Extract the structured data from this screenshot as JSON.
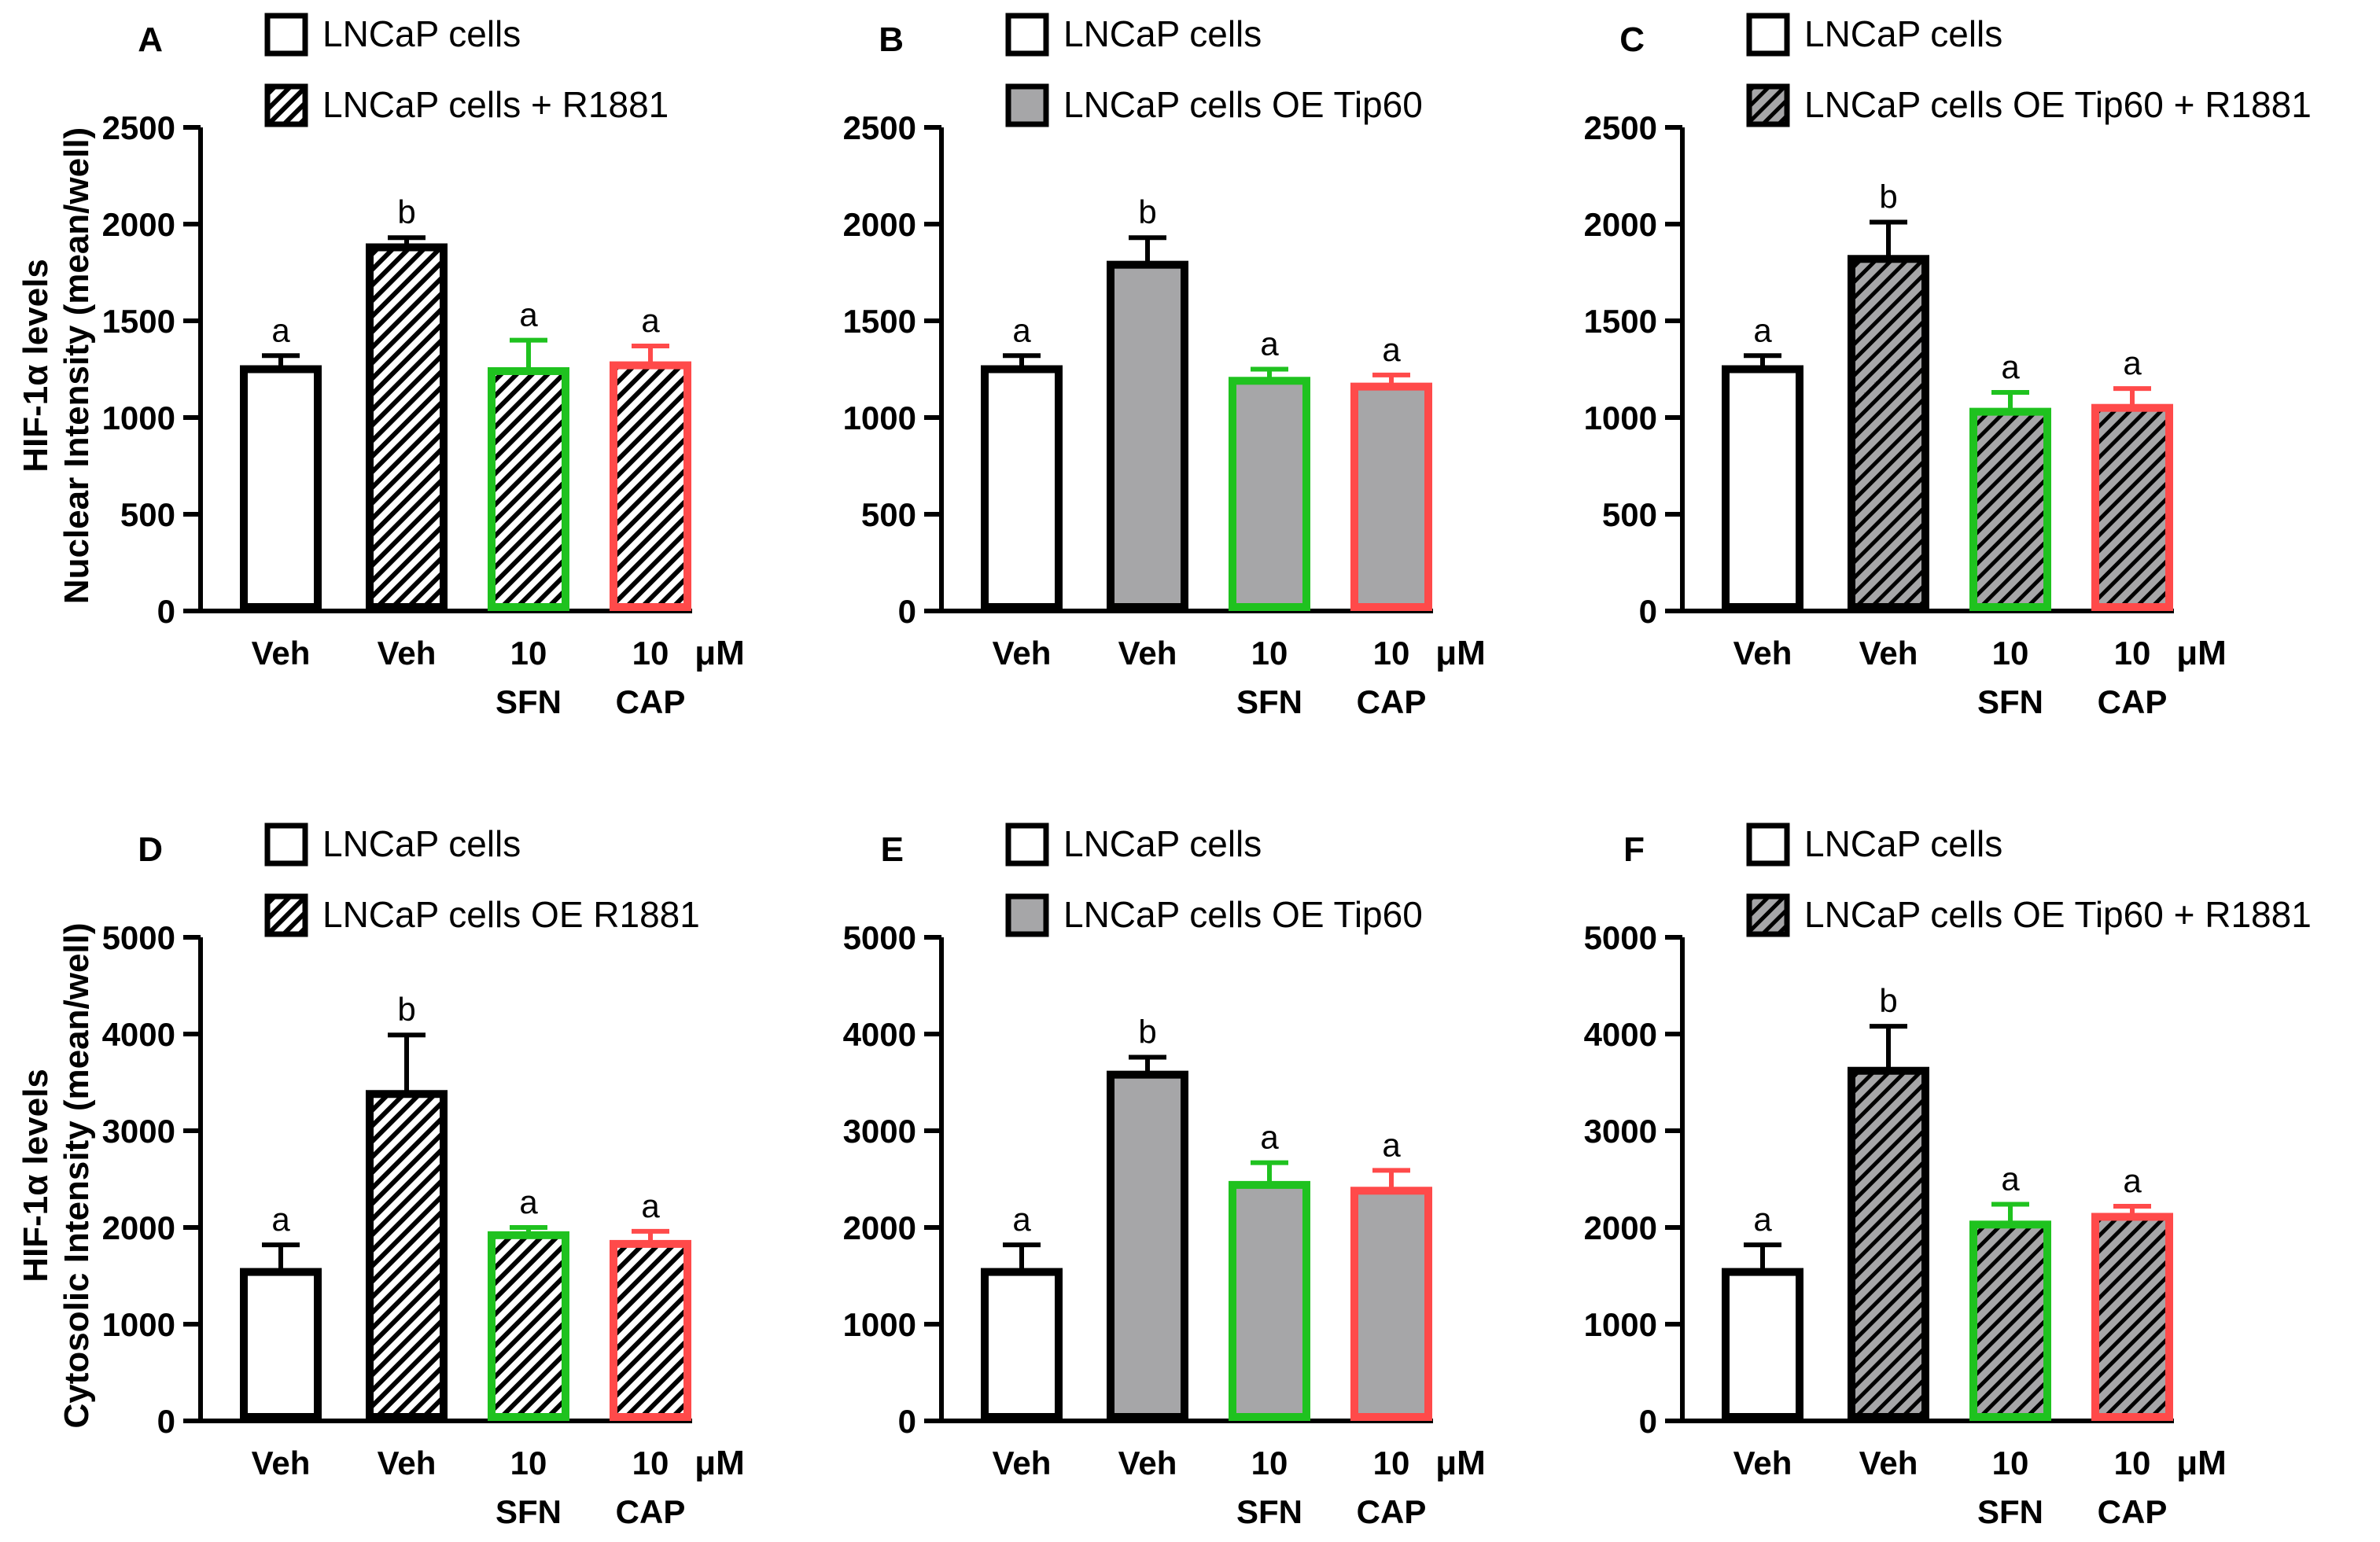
{
  "y_axis_titles": {
    "row1": [
      "HIF-1α levels",
      "Nuclear Intensity (mean/well)"
    ],
    "row2": [
      "HIF-1α levels",
      "Cytosolic Intensity (mean/well)"
    ]
  },
  "colors": {
    "black": "#000000",
    "gray_fill": "#a6a6a8",
    "green": "#1fc21f",
    "red": "#ff4a4a",
    "white": "#ffffff"
  },
  "chart_data": [
    {
      "type": "bar",
      "panel": "A",
      "legend": [
        {
          "label": "LNCaP cells",
          "fill": "white"
        },
        {
          "label": "LNCaP cells + R1881",
          "fill": "hatch"
        }
      ],
      "categories": [
        [
          "Veh"
        ],
        [
          "Veh"
        ],
        [
          "10",
          "SFN"
        ],
        [
          "10",
          "CAP"
        ]
      ],
      "unit": "μM",
      "values": [
        1250,
        1880,
        1240,
        1270
      ],
      "errors": [
        70,
        50,
        160,
        100
      ],
      "letters": [
        "a",
        "b",
        "a",
        "a"
      ],
      "fills": [
        "white",
        "hatch",
        "hatch",
        "hatch"
      ],
      "strokes": [
        "black",
        "black",
        "green",
        "red"
      ],
      "ylim": [
        0,
        2500
      ],
      "yticks": [
        "0",
        "500",
        "1000",
        "1500",
        "2000",
        "2500"
      ]
    },
    {
      "type": "bar",
      "panel": "B",
      "legend": [
        {
          "label": "LNCaP cells",
          "fill": "white"
        },
        {
          "label": "LNCaP cells OE Tip60",
          "fill": "gray"
        }
      ],
      "categories": [
        [
          "Veh"
        ],
        [
          "Veh"
        ],
        [
          "10",
          "SFN"
        ],
        [
          "10",
          "CAP"
        ]
      ],
      "unit": "μM",
      "values": [
        1250,
        1790,
        1190,
        1160
      ],
      "errors": [
        70,
        140,
        60,
        60
      ],
      "letters": [
        "a",
        "b",
        "a",
        "a"
      ],
      "fills": [
        "white",
        "gray",
        "gray",
        "gray"
      ],
      "strokes": [
        "black",
        "black",
        "green",
        "red"
      ],
      "ylim": [
        0,
        2500
      ],
      "yticks": [
        "0",
        "500",
        "1000",
        "1500",
        "2000",
        "2500"
      ]
    },
    {
      "type": "bar",
      "panel": "C",
      "legend": [
        {
          "label": "LNCaP cells",
          "fill": "white"
        },
        {
          "label": "LNCaP cells OE Tip60 + R1881",
          "fill": "grayhatch"
        }
      ],
      "categories": [
        [
          "Veh"
        ],
        [
          "Veh"
        ],
        [
          "10",
          "SFN"
        ],
        [
          "10",
          "CAP"
        ]
      ],
      "unit": "μM",
      "values": [
        1250,
        1820,
        1030,
        1050
      ],
      "errors": [
        70,
        190,
        100,
        100
      ],
      "letters": [
        "a",
        "b",
        "a",
        "a"
      ],
      "fills": [
        "white",
        "grayhatch",
        "grayhatch",
        "grayhatch"
      ],
      "strokes": [
        "black",
        "black",
        "green",
        "red"
      ],
      "ylim": [
        0,
        2500
      ],
      "yticks": [
        "0",
        "500",
        "1000",
        "1500",
        "2000",
        "2500"
      ]
    },
    {
      "type": "bar",
      "panel": "D",
      "legend": [
        {
          "label": "LNCaP cells",
          "fill": "white"
        },
        {
          "label": "LNCaP cells OE R1881",
          "fill": "hatch"
        }
      ],
      "categories": [
        [
          "Veh"
        ],
        [
          "Veh"
        ],
        [
          "10",
          "SFN"
        ],
        [
          "10",
          "CAP"
        ]
      ],
      "unit": "μM",
      "values": [
        1540,
        3380,
        1920,
        1830
      ],
      "errors": [
        280,
        610,
        80,
        130
      ],
      "letters": [
        "a",
        "b",
        "a",
        "a"
      ],
      "fills": [
        "white",
        "hatch",
        "hatch",
        "hatch"
      ],
      "strokes": [
        "black",
        "black",
        "green",
        "red"
      ],
      "ylim": [
        0,
        5000
      ],
      "yticks": [
        "0",
        "1000",
        "2000",
        "3000",
        "4000",
        "5000"
      ]
    },
    {
      "type": "bar",
      "panel": "E",
      "legend": [
        {
          "label": "LNCaP cells",
          "fill": "white"
        },
        {
          "label": "LNCaP cells OE Tip60",
          "fill": "gray"
        }
      ],
      "categories": [
        [
          "Veh"
        ],
        [
          "Veh"
        ],
        [
          "10",
          "SFN"
        ],
        [
          "10",
          "CAP"
        ]
      ],
      "unit": "μM",
      "values": [
        1540,
        3580,
        2440,
        2380
      ],
      "errors": [
        280,
        180,
        230,
        210
      ],
      "letters": [
        "a",
        "b",
        "a",
        "a"
      ],
      "fills": [
        "white",
        "gray",
        "gray",
        "gray"
      ],
      "strokes": [
        "black",
        "black",
        "green",
        "red"
      ],
      "ylim": [
        0,
        5000
      ],
      "yticks": [
        "0",
        "1000",
        "2000",
        "3000",
        "4000",
        "5000"
      ]
    },
    {
      "type": "bar",
      "panel": "F",
      "legend": [
        {
          "label": "LNCaP cells",
          "fill": "white"
        },
        {
          "label": "LNCaP cells OE Tip60 + R1881",
          "fill": "grayhatch"
        }
      ],
      "categories": [
        [
          "Veh"
        ],
        [
          "Veh"
        ],
        [
          "10",
          "SFN"
        ],
        [
          "10",
          "CAP"
        ]
      ],
      "unit": "μM",
      "values": [
        1540,
        3620,
        2030,
        2110
      ],
      "errors": [
        280,
        460,
        210,
        110
      ],
      "letters": [
        "a",
        "b",
        "a",
        "a"
      ],
      "fills": [
        "white",
        "grayhatch",
        "grayhatch",
        "grayhatch"
      ],
      "strokes": [
        "black",
        "black",
        "green",
        "red"
      ],
      "ylim": [
        0,
        5000
      ],
      "yticks": [
        "0",
        "1000",
        "2000",
        "3000",
        "4000",
        "5000"
      ]
    }
  ]
}
